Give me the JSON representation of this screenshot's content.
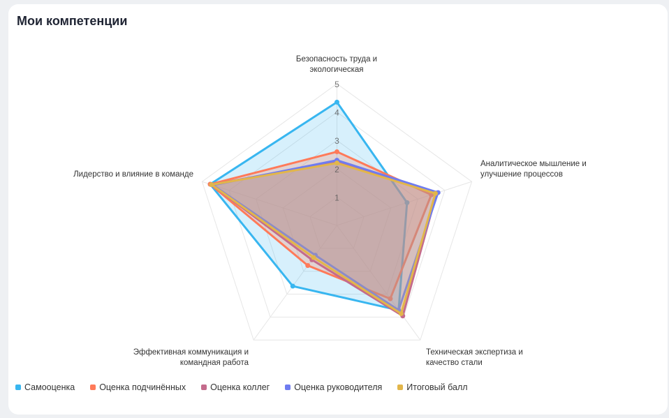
{
  "title": "Мои компетенции",
  "chart_data": {
    "type": "radar",
    "title": "Мои компетенции",
    "axes": [
      [
        "Безопасность труда и",
        "экологическая"
      ],
      [
        "Аналитическое мышление и",
        "улучшение процессов"
      ],
      [
        "Техническая экспертиза и",
        "качество стали"
      ],
      [
        "Эффективная коммуникация и",
        "командная работа"
      ],
      [
        "Лидерство и влияние в команде"
      ]
    ],
    "rlim": [
      0,
      5
    ],
    "ticks": [
      "1",
      "2",
      "3",
      "4",
      "5"
    ],
    "legend_position": "bottom-left",
    "series": [
      {
        "name": "Самооценка",
        "color": "#38b6f0",
        "values": [
          4.35,
          2.6,
          3.7,
          2.65,
          4.7
        ]
      },
      {
        "name": "Оценка подчинённых",
        "color": "#ff7a59",
        "values": [
          2.6,
          3.5,
          3.2,
          1.75,
          4.7
        ]
      },
      {
        "name": "Оценка коллег",
        "color": "#c46b8c",
        "values": [
          2.25,
          3.7,
          3.95,
          1.5,
          4.65
        ]
      },
      {
        "name": "Оценка руководителя",
        "color": "#6f7cf0",
        "values": [
          2.3,
          3.75,
          3.7,
          1.3,
          4.6
        ]
      },
      {
        "name": "Итоговый балл",
        "color": "#e2b64a",
        "values": [
          2.2,
          3.65,
          3.85,
          1.4,
          4.65
        ]
      }
    ]
  }
}
